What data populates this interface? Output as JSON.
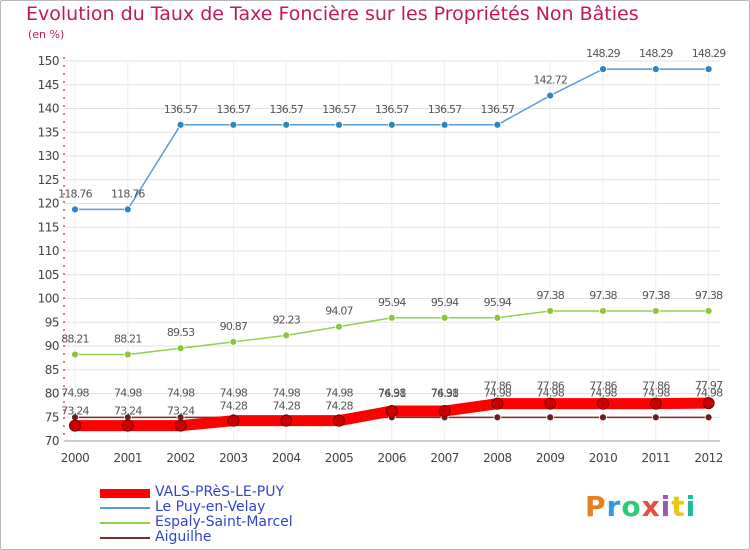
{
  "chart_data": {
    "type": "line",
    "title": "Evolution du Taux de Taxe Foncière sur les Propriétés Non Bâties",
    "unit_label": "(en %)",
    "xlabel": "",
    "ylabel": "",
    "ylim": [
      70,
      150
    ],
    "yticks": [
      70,
      75,
      80,
      85,
      90,
      95,
      100,
      105,
      110,
      115,
      120,
      125,
      130,
      135,
      140,
      145,
      150
    ],
    "categories": [
      "2000",
      "2001",
      "2002",
      "2003",
      "2004",
      "2005",
      "2006",
      "2007",
      "2008",
      "2009",
      "2010",
      "2011",
      "2012"
    ],
    "series": [
      {
        "name": "VALS-PRèS-LE-PUY",
        "color": "#ff0000",
        "values": [
          73.24,
          73.24,
          73.24,
          74.28,
          74.28,
          74.28,
          76.31,
          76.31,
          77.86,
          77.86,
          77.86,
          77.86,
          77.97
        ],
        "labels": [
          "73.24",
          "73.24",
          "73.24",
          "74.28",
          "74.28",
          "74.28",
          "76.31",
          "76.31",
          "77.86",
          "77.86",
          "77.86",
          "77.86",
          "77.97"
        ]
      },
      {
        "name": "Le Puy-en-Velay",
        "color": "#5b9bd5",
        "values": [
          118.76,
          118.76,
          136.57,
          136.57,
          136.57,
          136.57,
          136.57,
          136.57,
          136.57,
          142.72,
          148.29,
          148.29,
          148.29
        ],
        "labels": [
          "118.76",
          "118.76",
          "136.57",
          "136.57",
          "136.57",
          "136.57",
          "136.57",
          "136.57",
          "136.57",
          "142.72",
          "148.29",
          "148.29",
          "148.29"
        ]
      },
      {
        "name": "Espaly-Saint-Marcel",
        "color": "#92d050",
        "values": [
          88.21,
          88.21,
          89.53,
          90.87,
          92.23,
          94.07,
          95.94,
          95.94,
          95.94,
          97.38,
          97.38,
          97.38,
          97.38
        ],
        "labels": [
          "88.21",
          "88.21",
          "89.53",
          "90.87",
          "92.23",
          "94.07",
          "95.94",
          "95.94",
          "95.94",
          "97.38",
          "97.38",
          "97.38",
          "97.38"
        ]
      },
      {
        "name": "Aiguilhe",
        "color": "#7b2d2d",
        "values": [
          74.98,
          74.98,
          74.98,
          74.98,
          74.98,
          74.98,
          74.98,
          74.98,
          74.98,
          74.98,
          74.98,
          74.98,
          74.98
        ],
        "labels": [
          "74.98",
          "74.98",
          "74.98",
          "74.98",
          "74.98",
          "74.98",
          "74.98",
          "74.98",
          "74.98",
          "74.98",
          "74.98",
          "74.98",
          "74.98"
        ]
      }
    ]
  },
  "branding": {
    "logo_text": "Proxiti",
    "logo_colors": [
      "#e67e22",
      "#3498db",
      "#2ecc71",
      "#e74c3c",
      "#9b59b6",
      "#f1c40f",
      "#1abc9c"
    ]
  }
}
